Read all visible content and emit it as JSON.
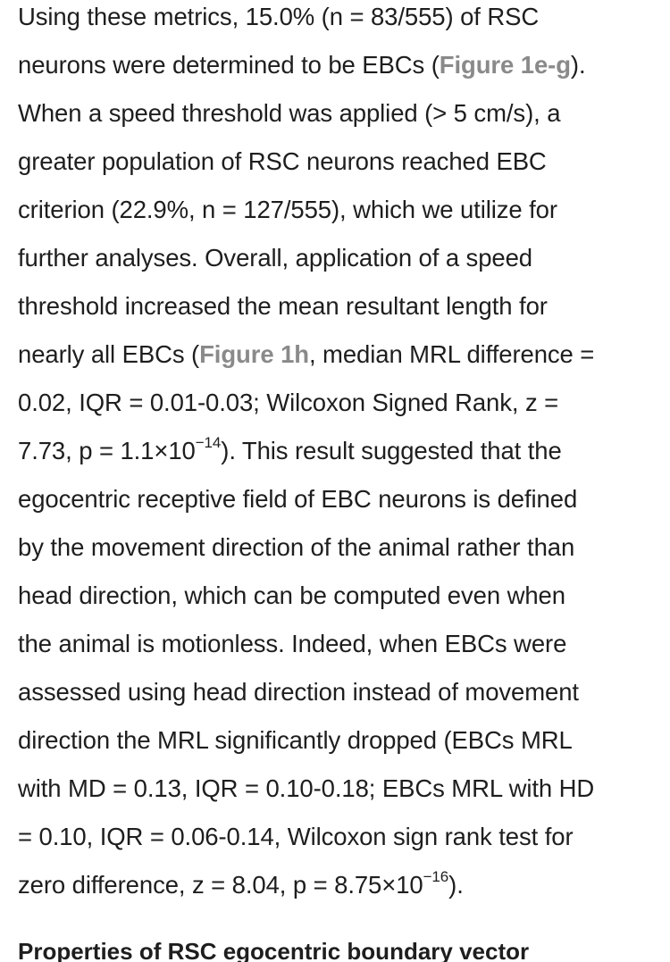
{
  "paragraph": {
    "l1": {
      "a": "Using these metrics, 15.0% (n = 83/555) of RSC"
    },
    "l2": {
      "a": "neurons were determined to be EBCs (",
      "link": "Figure 1e-g",
      "b": ")."
    },
    "l3": {
      "a": "When a speed threshold was applied (> 5 cm/s), a"
    },
    "l4": {
      "a": "greater population of RSC neurons reached EBC"
    },
    "l5": {
      "a": "criterion (22.9%, n = 127/555), which we utilize for"
    },
    "l6": {
      "a": "further analyses. Overall, application of a speed"
    },
    "l7": {
      "a": "threshold increased the mean resultant length for"
    },
    "l8": {
      "a": "nearly all EBCs (",
      "link": "Figure 1h",
      "b": ", median MRL difference ="
    },
    "l9": {
      "a": "0.02, IQR = 0.01-0.03; Wilcoxon Signed Rank, z ="
    },
    "l10": {
      "a": "7.73, p = 1.1×10",
      "sup": "−14",
      "b": "). This result suggested that the"
    },
    "l11": {
      "a": "egocentric receptive field of EBC neurons is defined"
    },
    "l12": {
      "a": "by the movement direction of the animal rather than"
    },
    "l13": {
      "a": "head direction, which can be computed even when"
    },
    "l14": {
      "a": "the animal is motionless. Indeed, when EBCs were"
    },
    "l15": {
      "a": "assessed using head direction instead of movement"
    },
    "l16": {
      "a": "direction the MRL significantly dropped (EBCs MRL"
    },
    "l17": {
      "a": "with MD = 0.13, IQR = 0.10-0.18; EBCs MRL with HD"
    },
    "l18": {
      "a": "= 0.10, IQR = 0.06-0.14, Wilcoxon sign rank test for"
    },
    "l19": {
      "a": "zero difference, z = 8.04, p = 8.75×10",
      "sup": "−16",
      "b": ")."
    }
  },
  "section_heading": "Properties of RSC egocentric boundary vector"
}
